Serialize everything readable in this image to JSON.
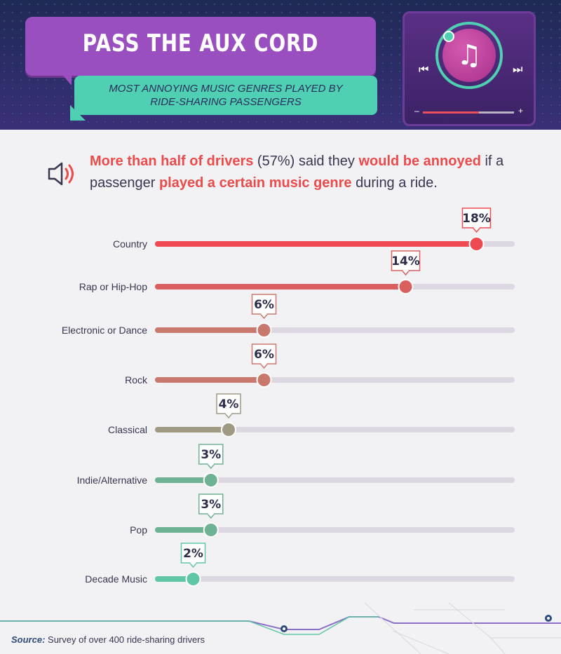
{
  "header": {
    "title": "PASS THE AUX CORD",
    "subtitle_line1": "MOST ANNOYING MUSIC GENRES PLAYED BY",
    "subtitle_line2": "RIDE-SHARING PASSENGERS",
    "player": {
      "note_icon": "music-note-icon",
      "prev_icon": "skip-previous-icon",
      "next_icon": "skip-next-icon",
      "vol_minus": "–",
      "vol_plus": "+"
    }
  },
  "intro": {
    "part1": "More than half of drivers",
    "part2": " (57%) said they ",
    "part3": "would be annoyed",
    "part4": " if a passenger ",
    "part5": "played a certain music genre",
    "part6": " during a ride."
  },
  "chart_data": {
    "type": "bar",
    "xlim": [
      0,
      20
    ],
    "categories": [
      "Country",
      "Rap or Hip-Hop",
      "Electronic or Dance",
      "Rock",
      "Classical",
      "Indie/Alternative",
      "Pop",
      "Decade Music"
    ],
    "values": [
      18,
      14,
      6,
      6,
      4,
      3,
      3,
      2
    ],
    "value_labels": [
      "18%",
      "14%",
      "6%",
      "6%",
      "4%",
      "3%",
      "3%",
      "2%"
    ],
    "colors": [
      "#ef4a52",
      "#d9605f",
      "#c9786e",
      "#c9786e",
      "#a09a84",
      "#6fb293",
      "#6fb293",
      "#5fc7a6"
    ],
    "track_color": "#dcd7e1",
    "grid": false
  },
  "footer": {
    "source_label": "Source:",
    "source_text": " Survey of over 400 ride-sharing drivers"
  }
}
